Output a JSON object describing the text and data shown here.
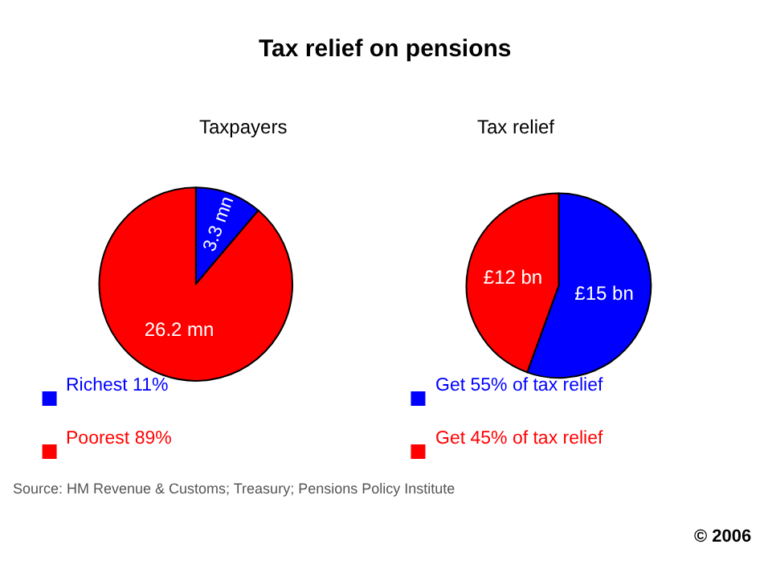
{
  "chart_data": [
    {
      "type": "pie",
      "title": "Tax relief on pensions",
      "subtitle": "Taxpayers",
      "categories": [
        "Richest 11%",
        "Poorest 89%"
      ],
      "values": [
        3.3,
        26.2
      ],
      "value_labels": [
        "3.3 mn",
        "26.2 mn"
      ],
      "colors": [
        "#0000ff",
        "#ff0000"
      ],
      "legend": "bottom",
      "annotations": [
        "Source: HM Revenue & Customs; Treasury; Pensions Policy Institute"
      ]
    },
    {
      "type": "pie",
      "subtitle": "Tax relief",
      "categories": [
        "Get 55% of tax relief",
        "Get 45% of tax relief"
      ],
      "values": [
        15,
        12
      ],
      "value_labels": [
        "£15 bn",
        "£12 bn"
      ],
      "colors": [
        "#0000ff",
        "#ff0000"
      ],
      "legend": "bottom",
      "annotations": [
        "© 2006"
      ]
    }
  ]
}
